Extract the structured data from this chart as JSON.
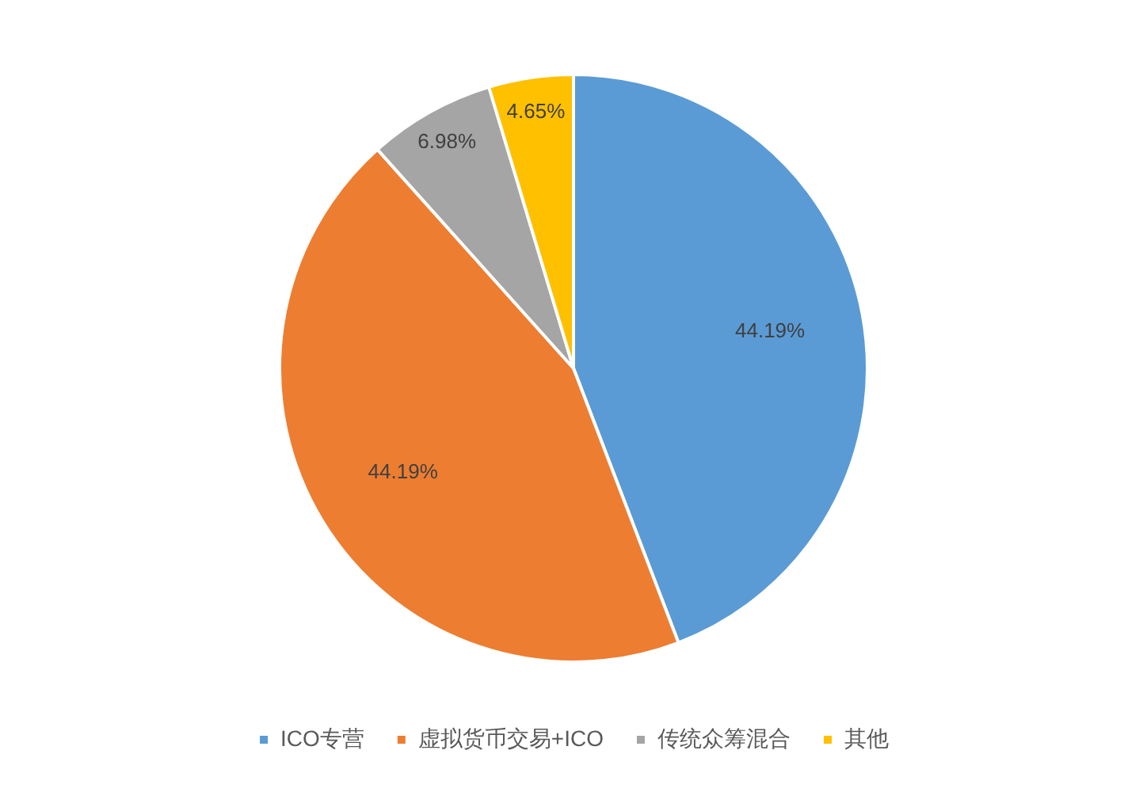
{
  "chart_data": {
    "type": "pie",
    "categories": [
      "ICO专营",
      "虚拟货币交易+ICO",
      "传统众筹混合",
      "其他"
    ],
    "values": [
      44.19,
      44.19,
      6.98,
      4.65
    ],
    "colors": [
      "#5b9bd5",
      "#ed7d31",
      "#a5a5a5",
      "#ffc000"
    ],
    "value_labels": [
      "44.19%",
      "44.19%",
      "6.98%",
      "4.65%"
    ],
    "legend": "bottom"
  }
}
